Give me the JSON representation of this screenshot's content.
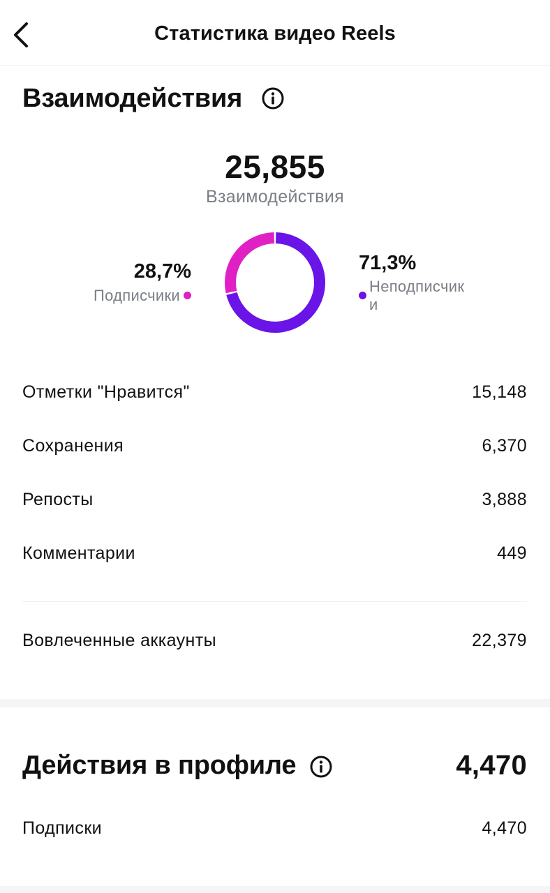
{
  "header": {
    "title": "Статистика видео Reels"
  },
  "interactions": {
    "title": "Взаимодействия",
    "total": "25,855",
    "total_label": "Взаимодействия",
    "breakdown": [
      {
        "percent": "28,7%",
        "label": "Подписчики",
        "color": "#e020c4",
        "value": 28.7
      },
      {
        "percent": "71,3%",
        "label": "Неподписчик\nи",
        "color": "#6a14e8",
        "value": 71.3
      }
    ],
    "rows": [
      {
        "label": "Отметки \"Нравится\"",
        "value": "15,148"
      },
      {
        "label": "Сохранения",
        "value": "6,370"
      },
      {
        "label": "Репосты",
        "value": "3,888"
      },
      {
        "label": "Комментарии",
        "value": "449"
      }
    ],
    "engaged": {
      "label": "Вовлеченные аккаунты",
      "value": "22,379"
    }
  },
  "profile_actions": {
    "title": "Действия в профиле",
    "total": "4,470",
    "rows": [
      {
        "label": "Подписки",
        "value": "4,470"
      }
    ]
  },
  "icons": {
    "back": "chevron-left-icon",
    "info": "info-circle-icon"
  }
}
